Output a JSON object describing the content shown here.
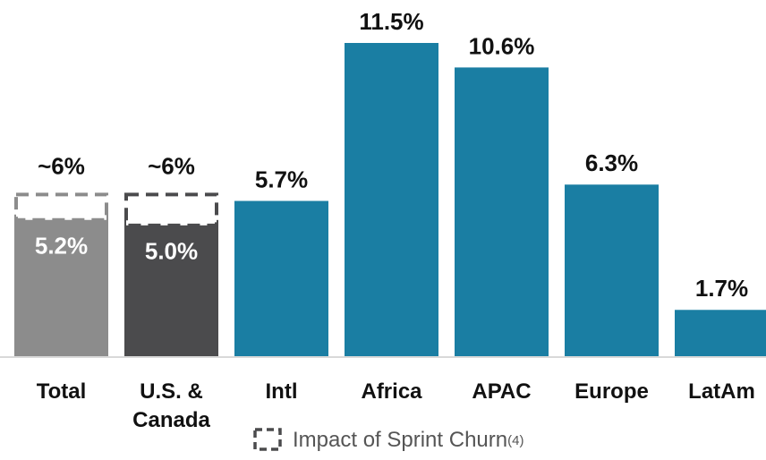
{
  "chart_data": {
    "type": "bar",
    "categories": [
      "Total",
      "U.S. & Canada",
      "Intl",
      "Africa",
      "APAC",
      "Europe",
      "LatAm"
    ],
    "values": [
      5.2,
      5.0,
      5.7,
      11.5,
      10.6,
      6.3,
      1.7
    ],
    "value_labels": [
      "5.2%",
      "5.0%",
      "5.7%",
      "11.5%",
      "10.6%",
      "6.3%",
      "1.7%"
    ],
    "colors": [
      "#8c8c8c",
      "#4b4b4d",
      "#1a7ea3",
      "#1a7ea3",
      "#1a7ea3",
      "#1a7ea3",
      "#1a7ea3"
    ],
    "label_inside": [
      true,
      true,
      false,
      false,
      false,
      false,
      false
    ],
    "adjusted": {
      "values": [
        6,
        6
      ],
      "value_labels": [
        "~6%",
        "~6%"
      ]
    },
    "legend": {
      "label": "Impact of Sprint Churn",
      "note": "(4)"
    }
  }
}
